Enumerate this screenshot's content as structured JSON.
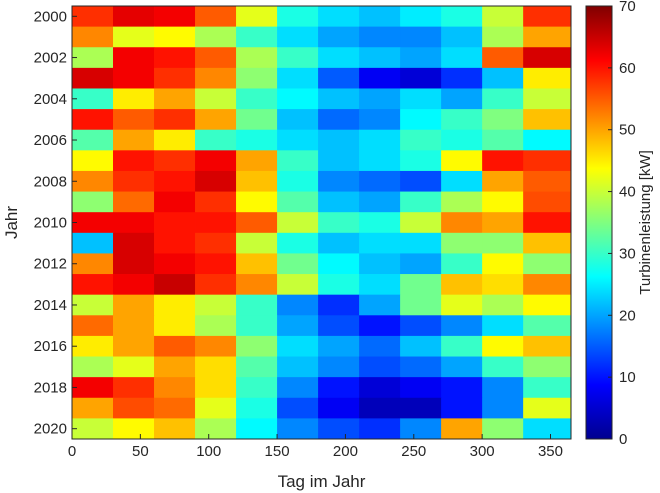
{
  "chart_data": {
    "type": "heatmap",
    "xlabel": "Tag im Jahr",
    "ylabel": "Jahr",
    "xlim": [
      0,
      365
    ],
    "ylim": [
      1999.5,
      2020.5
    ],
    "x_ticks": [
      "0",
      "50",
      "100",
      "150",
      "200",
      "250",
      "300",
      "350"
    ],
    "y_ticks": [
      "2000",
      "2002",
      "2004",
      "2006",
      "2008",
      "2010",
      "2012",
      "2014",
      "2016",
      "2018",
      "2020"
    ],
    "colorbar": {
      "label": "Turbinenleistung [kW]",
      "colormap": "jet",
      "range": [
        0,
        70
      ],
      "ticks": [
        "0",
        "10",
        "20",
        "30",
        "40",
        "50",
        "60",
        "70"
      ]
    },
    "day_bins": [
      0,
      30,
      60,
      90,
      120,
      150,
      180,
      210,
      240,
      270,
      300,
      330,
      365
    ],
    "years": [
      2000,
      2001,
      2002,
      2003,
      2004,
      2005,
      2006,
      2007,
      2008,
      2009,
      2010,
      2011,
      2012,
      2013,
      2014,
      2015,
      2016,
      2017,
      2018,
      2019,
      2020
    ],
    "values_kW": [
      [
        58,
        63,
        62,
        55,
        42,
        28,
        24,
        22,
        25,
        28,
        40,
        58
      ],
      [
        52,
        42,
        44,
        38,
        30,
        24,
        20,
        18,
        18,
        22,
        38,
        50
      ],
      [
        38,
        62,
        60,
        55,
        38,
        30,
        24,
        22,
        20,
        24,
        55,
        64
      ],
      [
        64,
        62,
        58,
        52,
        36,
        24,
        15,
        8,
        6,
        12,
        22,
        45
      ],
      [
        30,
        45,
        50,
        40,
        30,
        26,
        22,
        20,
        24,
        20,
        30,
        40
      ],
      [
        60,
        55,
        58,
        50,
        34,
        22,
        16,
        18,
        26,
        30,
        35,
        48
      ],
      [
        32,
        50,
        45,
        30,
        28,
        24,
        22,
        24,
        30,
        28,
        32,
        26
      ],
      [
        44,
        60,
        58,
        62,
        50,
        30,
        22,
        24,
        28,
        44,
        60,
        58
      ],
      [
        52,
        58,
        60,
        64,
        48,
        28,
        18,
        16,
        14,
        24,
        50,
        55
      ],
      [
        36,
        54,
        62,
        58,
        44,
        32,
        22,
        20,
        30,
        38,
        44,
        56
      ],
      [
        62,
        62,
        60,
        60,
        55,
        40,
        30,
        28,
        40,
        52,
        50,
        60
      ],
      [
        22,
        64,
        60,
        58,
        40,
        28,
        22,
        24,
        24,
        36,
        36,
        48
      ],
      [
        52,
        64,
        62,
        60,
        48,
        34,
        26,
        22,
        20,
        30,
        44,
        36
      ],
      [
        60,
        62,
        65,
        58,
        52,
        40,
        28,
        24,
        34,
        48,
        46,
        52
      ],
      [
        40,
        50,
        45,
        40,
        30,
        18,
        12,
        20,
        34,
        42,
        38,
        44
      ],
      [
        54,
        50,
        45,
        38,
        30,
        20,
        14,
        10,
        14,
        18,
        24,
        32
      ],
      [
        45,
        50,
        55,
        52,
        36,
        24,
        20,
        16,
        22,
        30,
        44,
        48
      ],
      [
        38,
        42,
        50,
        46,
        32,
        22,
        18,
        14,
        16,
        20,
        30,
        36
      ],
      [
        62,
        58,
        52,
        46,
        30,
        18,
        10,
        6,
        8,
        10,
        18,
        30
      ],
      [
        50,
        56,
        54,
        42,
        28,
        14,
        8,
        4,
        4,
        10,
        18,
        42
      ],
      [
        40,
        44,
        48,
        38,
        26,
        18,
        14,
        12,
        18,
        50,
        36,
        24
      ]
    ]
  }
}
